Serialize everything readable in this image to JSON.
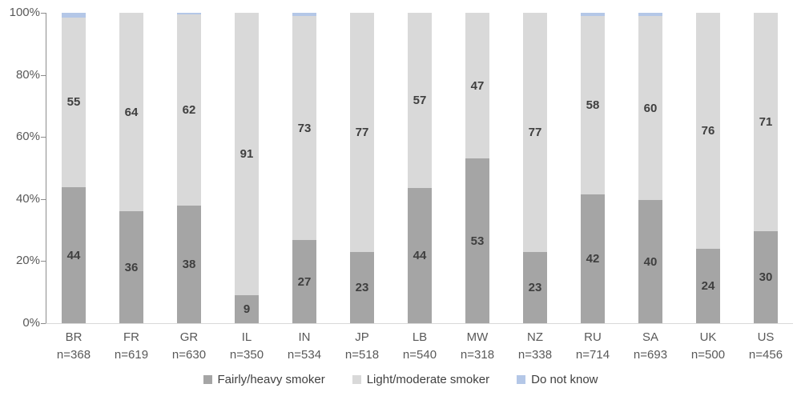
{
  "chart_data": {
    "type": "bar",
    "variant": "stacked-100-percent",
    "title": "",
    "xlabel": "",
    "ylabel": "",
    "legend_position": "bottom",
    "grid": false,
    "y_axis": {
      "min": 0,
      "max": 100,
      "ticks": [
        "0%",
        "20%",
        "40%",
        "60%",
        "80%",
        "100%"
      ]
    },
    "categories": [
      "BR",
      "FR",
      "GR",
      "IL",
      "IN",
      "JP",
      "LB",
      "MW",
      "NZ",
      "RU",
      "SA",
      "UK",
      "US"
    ],
    "sample_sizes": [
      "n=368",
      "n=619",
      "n=630",
      "n=350",
      "n=534",
      "n=518",
      "n=540",
      "n=318",
      "n=338",
      "n=714",
      "n=693",
      "n=500",
      "n=456"
    ],
    "series": [
      {
        "name": "Fairly/heavy smoker",
        "color": "#a5a5a5",
        "show_labels": true,
        "values": [
          44,
          36,
          38,
          9,
          27,
          23,
          44,
          53,
          23,
          42,
          40,
          24,
          30
        ]
      },
      {
        "name": "Light/moderate smoker",
        "color": "#d9d9d9",
        "show_labels": true,
        "values": [
          55,
          64,
          62,
          91,
          73,
          77,
          57,
          47,
          77,
          58,
          60,
          76,
          71
        ]
      },
      {
        "name": "Do not know",
        "color": "#b4c7e7",
        "show_labels": false,
        "values": [
          1.5,
          0,
          0.5,
          0,
          1,
          0,
          0,
          0,
          0,
          1,
          1,
          0,
          0
        ]
      }
    ],
    "colors": {
      "axis_line": "#8c8c8c",
      "baseline": "#d9d9d9",
      "axis_text": "#595959",
      "bar_label_text": "#3f3f3f",
      "legend_text": "#404040"
    }
  }
}
